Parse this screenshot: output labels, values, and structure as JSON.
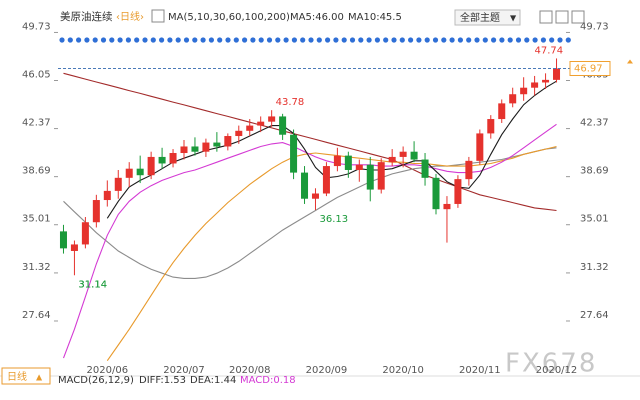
{
  "header": {
    "title": "美原油连续",
    "period": "日线",
    "indicator": "MA(5,10,30,60,100,200)",
    "readouts": [
      "MA5:46.00",
      "MA10:45.5"
    ],
    "theme_menu": "全部主题"
  },
  "chart_data": {
    "type": "candlestick",
    "categories": [
      null,
      null,
      null,
      null,
      "2020/06",
      null,
      null,
      null,
      null,
      null,
      null,
      "2020/07",
      null,
      null,
      null,
      null,
      null,
      "2020/08",
      null,
      null,
      null,
      null,
      null,
      null,
      "2020/09",
      null,
      null,
      null,
      null,
      null,
      null,
      "2020/10",
      null,
      null,
      null,
      null,
      null,
      null,
      "2020/11",
      null,
      null,
      null,
      null,
      null,
      null,
      "2020/12"
    ],
    "open": [
      34.5,
      33.0,
      33.5,
      35.2,
      36.9,
      37.6,
      38.6,
      39.3,
      38.8,
      40.2,
      39.7,
      40.5,
      41.0,
      40.6,
      41.3,
      41.0,
      41.8,
      42.2,
      42.6,
      42.9,
      43.3,
      41.9,
      39.0,
      37.0,
      37.4,
      39.5,
      40.3,
      39.2,
      39.6,
      37.7,
      39.8,
      40.2,
      40.6,
      40.0,
      38.6,
      36.2,
      36.6,
      38.5,
      39.9,
      42.0,
      43.1,
      44.3,
      45.0,
      45.5,
      45.9,
      46.1
    ],
    "high": [
      35.0,
      33.8,
      35.6,
      37.3,
      38.4,
      39.2,
      39.8,
      40.3,
      40.6,
      40.9,
      40.8,
      41.5,
      41.7,
      41.6,
      42.1,
      42.0,
      42.6,
      43.1,
      43.3,
      43.78,
      43.5,
      42.3,
      39.5,
      37.8,
      39.8,
      40.9,
      40.6,
      40.0,
      40.2,
      40.1,
      40.8,
      41.0,
      41.4,
      40.5,
      38.9,
      37.2,
      38.8,
      40.2,
      42.3,
      43.4,
      44.6,
      45.5,
      46.3,
      46.4,
      46.6,
      47.74
    ],
    "low": [
      32.8,
      31.14,
      33.2,
      34.8,
      36.4,
      37.0,
      37.9,
      38.2,
      38.5,
      39.3,
      39.4,
      40.0,
      40.3,
      40.2,
      40.6,
      40.7,
      41.2,
      41.8,
      42.1,
      42.5,
      41.5,
      38.5,
      36.6,
      36.13,
      37.2,
      39.1,
      38.6,
      38.3,
      36.8,
      37.4,
      39.5,
      39.4,
      39.8,
      38.0,
      35.8,
      33.64,
      36.3,
      38.0,
      39.6,
      41.6,
      42.8,
      44.0,
      44.5,
      44.9,
      45.4,
      45.9
    ],
    "close": [
      33.2,
      33.5,
      35.2,
      36.9,
      37.6,
      38.6,
      39.3,
      38.8,
      40.2,
      39.7,
      40.5,
      41.0,
      40.6,
      41.3,
      41.0,
      41.8,
      42.2,
      42.6,
      42.9,
      43.3,
      41.9,
      39.0,
      37.0,
      37.4,
      39.5,
      40.3,
      39.2,
      39.6,
      37.7,
      39.8,
      40.2,
      40.6,
      40.0,
      38.6,
      36.2,
      36.6,
      38.5,
      39.9,
      42.0,
      43.1,
      44.3,
      45.0,
      45.5,
      45.9,
      46.1,
      46.97
    ],
    "up_color": "#e5322d",
    "down_color": "#1a9a3a",
    "lines": [
      {
        "color": "#a32b2b",
        "values": [
          46.6,
          46.38,
          46.16,
          45.94,
          45.72,
          45.5,
          45.28,
          45.06,
          44.84,
          44.62,
          44.4,
          44.18,
          43.96,
          43.74,
          43.52,
          43.3,
          43.08,
          42.86,
          42.64,
          42.42,
          42.2,
          41.98,
          41.76,
          41.54,
          41.32,
          41.1,
          40.88,
          40.66,
          40.44,
          40.22,
          40.0,
          39.6,
          39.2,
          38.8,
          38.5,
          38.2,
          37.9,
          37.6,
          37.3,
          37.1,
          36.9,
          36.7,
          36.5,
          36.3,
          36.2,
          36.1
        ]
      },
      {
        "color": "#8c8c8c",
        "values": [
          36.8,
          36.0,
          35.2,
          34.4,
          33.7,
          33.0,
          32.5,
          32.0,
          31.6,
          31.3,
          31.0,
          30.9,
          30.9,
          31.0,
          31.3,
          31.7,
          32.2,
          32.8,
          33.4,
          34.0,
          34.6,
          35.1,
          35.6,
          36.1,
          36.6,
          37.1,
          37.5,
          37.9,
          38.3,
          38.6,
          38.9,
          39.1,
          39.3,
          39.4,
          39.5,
          39.5,
          39.6,
          39.7,
          39.8,
          39.9,
          40.0,
          40.2,
          40.4,
          40.6,
          40.8,
          40.9
        ]
      },
      {
        "color": "#e89a2c",
        "values": [
          null,
          null,
          null,
          null,
          24.6,
          25.8,
          27.0,
          28.3,
          29.6,
          30.9,
          32.1,
          33.2,
          34.2,
          35.1,
          35.9,
          36.7,
          37.4,
          38.1,
          38.7,
          39.3,
          39.8,
          40.2,
          40.4,
          40.5,
          40.4,
          40.3,
          40.2,
          40.1,
          40.0,
          39.9,
          39.8,
          39.8,
          39.7,
          39.7,
          39.6,
          39.5,
          39.5,
          39.5,
          39.6,
          39.7,
          39.9,
          40.1,
          40.4,
          40.6,
          40.8,
          41.0
        ]
      },
      {
        "color": "#d43ad4",
        "values": [
          24.8,
          27.0,
          29.5,
          32.0,
          34.2,
          35.8,
          36.8,
          37.5,
          38.0,
          38.4,
          38.7,
          39.0,
          39.2,
          39.5,
          39.8,
          40.1,
          40.4,
          40.7,
          41.0,
          41.2,
          41.3,
          41.0,
          40.6,
          40.2,
          39.9,
          39.7,
          39.6,
          39.6,
          39.6,
          39.5,
          39.5,
          39.6,
          39.6,
          39.5,
          39.3,
          39.1,
          39.0,
          39.0,
          39.1,
          39.4,
          39.8,
          40.3,
          40.9,
          41.5,
          42.1,
          42.7
        ]
      },
      {
        "color": "#1c1c1c",
        "values": [
          null,
          null,
          null,
          null,
          35.5,
          36.8,
          37.9,
          38.4,
          38.8,
          39.3,
          39.8,
          40.1,
          40.4,
          40.7,
          40.9,
          41.1,
          41.4,
          41.8,
          42.2,
          42.6,
          42.6,
          42.0,
          40.8,
          39.4,
          38.6,
          38.7,
          38.9,
          39.3,
          39.2,
          39.2,
          39.3,
          39.6,
          39.9,
          39.9,
          39.1,
          38.3,
          37.9,
          37.8,
          38.8,
          40.4,
          41.9,
          43.1,
          44.2,
          44.9,
          45.5,
          46.0
        ]
      }
    ],
    "ylim": [
      24.5,
      50.3
    ],
    "yticks": [
      27.64,
      31.32,
      35.01,
      38.69,
      42.37,
      46.05,
      49.73
    ],
    "last_price": 46.97,
    "last_price_color": "#f0a030"
  },
  "footer": {
    "period": "日线",
    "macd": "MACD(26,12,9)",
    "diff": "DIFF:1.53",
    "dea": "DEA:1.44",
    "macd_value": "MACD:0.18"
  },
  "watermark": "FX678"
}
